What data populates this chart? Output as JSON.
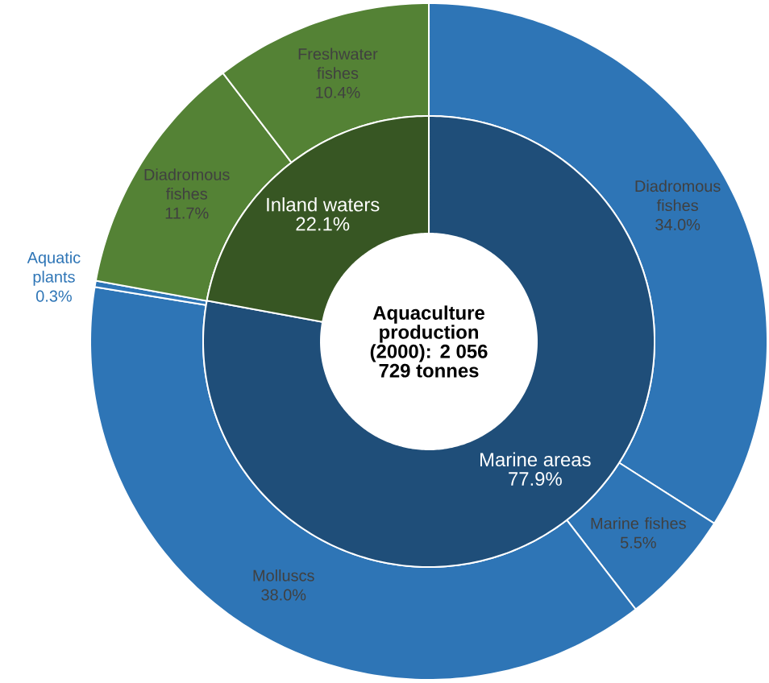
{
  "chart_data": [
    {
      "type": "donut",
      "title": "Aquaculture production (2000): 2 056 729 tonnes",
      "categories": [
        "Marine areas",
        "Inland waters"
      ],
      "values": [
        77.9,
        22.1
      ],
      "value_labels": [
        "77.9%",
        "22.1%"
      ],
      "colors": [
        "#1f4e79",
        "#375623"
      ]
    },
    {
      "type": "donut",
      "categories": [
        "Diadromous fishes",
        "Marine fishes",
        "Molluscs",
        "Aquatic plants",
        "Diadromous fishes",
        "Freshwater fishes"
      ],
      "values": [
        34.0,
        5.5,
        38.0,
        0.3,
        11.7,
        10.4
      ],
      "value_labels": [
        "34.0%",
        "5.5%",
        "38.0%",
        "0.3%",
        "11.7%",
        "10.4%"
      ],
      "colors": [
        "#2e75b6",
        "#2e75b6",
        "#2e75b6",
        "#2e75b6",
        "#548235",
        "#548235"
      ]
    }
  ]
}
